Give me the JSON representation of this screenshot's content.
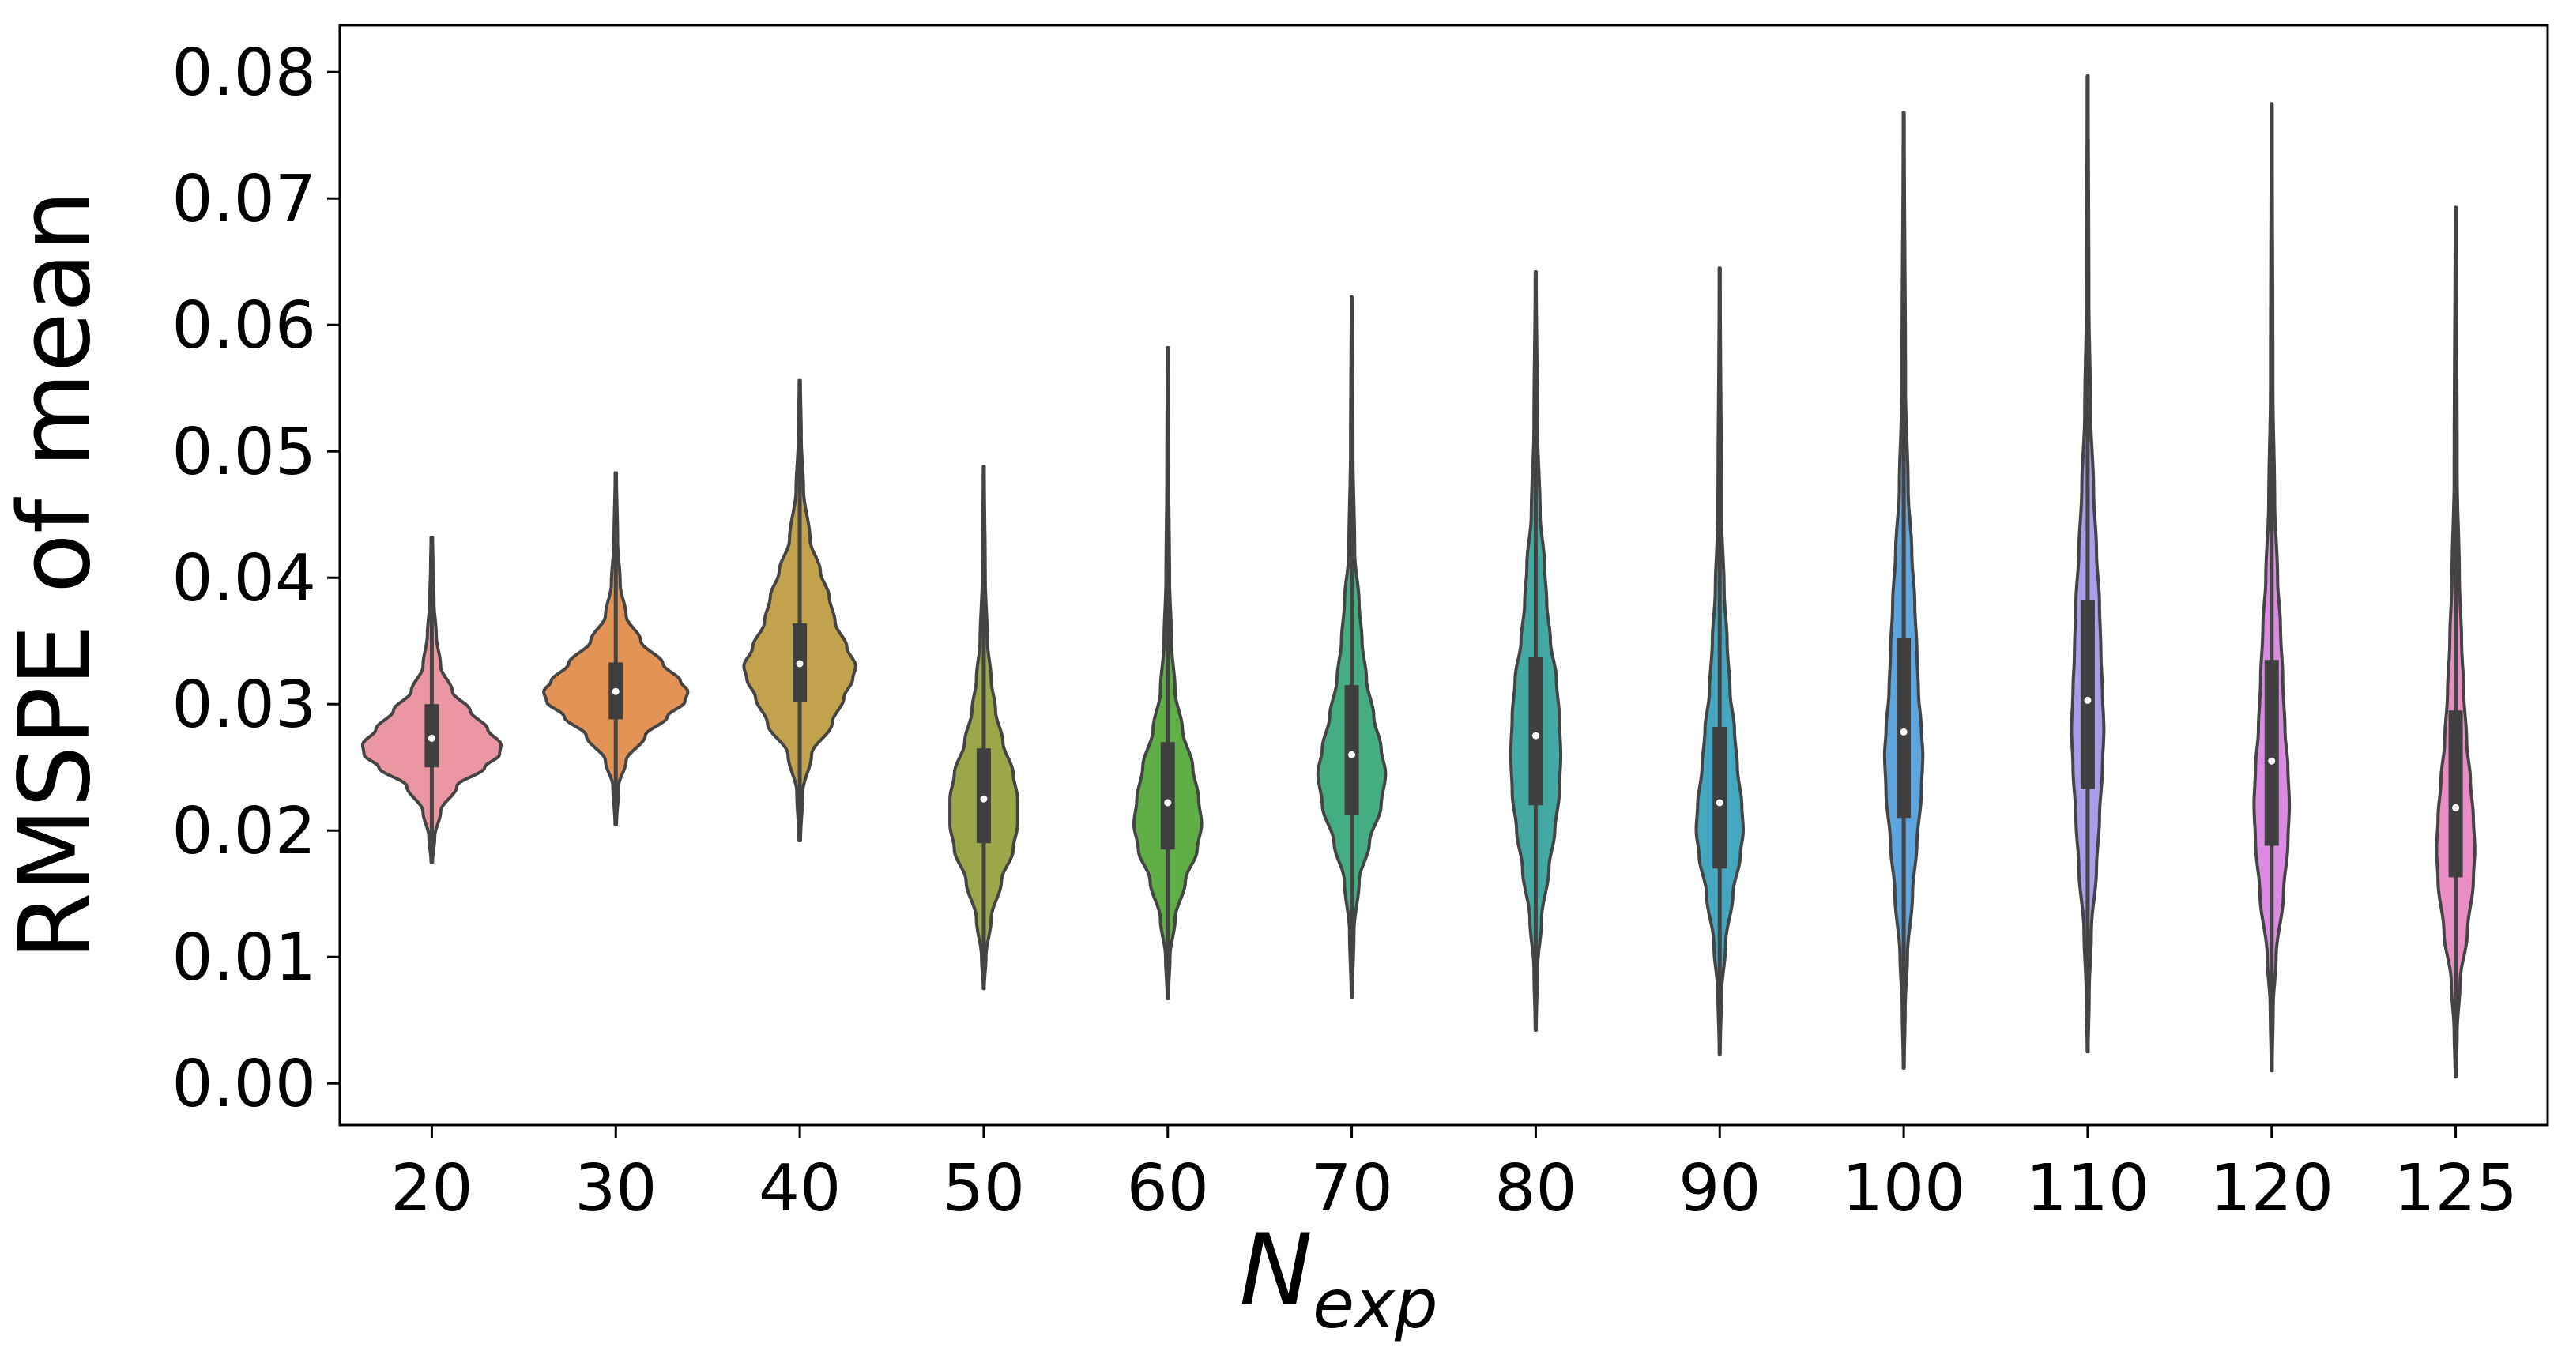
{
  "chart_data": {
    "type": "violin",
    "title": "",
    "xlabel": {
      "base": "N",
      "subscript": "exp"
    },
    "ylabel": "RMSPE of mean",
    "ylim": [
      -0.0033,
      0.0837
    ],
    "yticks": [
      "0.00",
      "0.01",
      "0.02",
      "0.03",
      "0.04",
      "0.05",
      "0.06",
      "0.07",
      "0.08"
    ],
    "grid": false,
    "legend": "none",
    "categories": [
      "20",
      "30",
      "40",
      "50",
      "60",
      "70",
      "80",
      "90",
      "100",
      "110",
      "120",
      "125"
    ],
    "series": [
      {
        "name": "20",
        "color": "#ea97a1",
        "min": 0.0175,
        "q1": 0.025,
        "median": 0.0273,
        "q3": 0.03,
        "max": 0.0432,
        "profile": [
          [
            0.0175,
            0.005
          ],
          [
            0.0195,
            0.02
          ],
          [
            0.0215,
            0.06
          ],
          [
            0.0235,
            0.17
          ],
          [
            0.025,
            0.36
          ],
          [
            0.026,
            0.46
          ],
          [
            0.0268,
            0.47
          ],
          [
            0.028,
            0.38
          ],
          [
            0.0295,
            0.26
          ],
          [
            0.031,
            0.14
          ],
          [
            0.033,
            0.06
          ],
          [
            0.0355,
            0.03
          ],
          [
            0.038,
            0.015
          ],
          [
            0.041,
            0.008
          ],
          [
            0.0432,
            0.005
          ]
        ]
      },
      {
        "name": "30",
        "color": "#e39356",
        "min": 0.0205,
        "q1": 0.0288,
        "median": 0.031,
        "q3": 0.0333,
        "max": 0.0483,
        "profile": [
          [
            0.0205,
            0.005
          ],
          [
            0.0235,
            0.02
          ],
          [
            0.0255,
            0.07
          ],
          [
            0.0275,
            0.2
          ],
          [
            0.029,
            0.35
          ],
          [
            0.0302,
            0.47
          ],
          [
            0.031,
            0.49
          ],
          [
            0.0318,
            0.44
          ],
          [
            0.0332,
            0.32
          ],
          [
            0.035,
            0.17
          ],
          [
            0.037,
            0.07
          ],
          [
            0.0395,
            0.03
          ],
          [
            0.043,
            0.012
          ],
          [
            0.0483,
            0.004
          ]
        ]
      },
      {
        "name": "40",
        "color": "#c2a24d",
        "min": 0.0192,
        "q1": 0.0302,
        "median": 0.0332,
        "q3": 0.0364,
        "max": 0.0556,
        "profile": [
          [
            0.0192,
            0.005
          ],
          [
            0.023,
            0.02
          ],
          [
            0.026,
            0.08
          ],
          [
            0.0285,
            0.22
          ],
          [
            0.0305,
            0.3
          ],
          [
            0.032,
            0.36
          ],
          [
            0.033,
            0.38
          ],
          [
            0.0345,
            0.32
          ],
          [
            0.0365,
            0.24
          ],
          [
            0.0385,
            0.2
          ],
          [
            0.0405,
            0.14
          ],
          [
            0.043,
            0.07
          ],
          [
            0.047,
            0.025
          ],
          [
            0.051,
            0.01
          ],
          [
            0.0556,
            0.004
          ]
        ]
      },
      {
        "name": "50",
        "color": "#9ba748",
        "min": 0.0075,
        "q1": 0.019,
        "median": 0.0225,
        "q3": 0.0265,
        "max": 0.0488,
        "profile": [
          [
            0.0075,
            0.003
          ],
          [
            0.01,
            0.015
          ],
          [
            0.013,
            0.05
          ],
          [
            0.016,
            0.12
          ],
          [
            0.0185,
            0.2
          ],
          [
            0.0205,
            0.23
          ],
          [
            0.0225,
            0.23
          ],
          [
            0.0245,
            0.2
          ],
          [
            0.027,
            0.13
          ],
          [
            0.0295,
            0.08
          ],
          [
            0.032,
            0.05
          ],
          [
            0.035,
            0.025
          ],
          [
            0.04,
            0.01
          ],
          [
            0.0488,
            0.003
          ]
        ]
      },
      {
        "name": "60",
        "color": "#5fae46",
        "min": 0.0067,
        "q1": 0.0185,
        "median": 0.0222,
        "q3": 0.027,
        "max": 0.0582,
        "profile": [
          [
            0.0067,
            0.003
          ],
          [
            0.01,
            0.015
          ],
          [
            0.013,
            0.05
          ],
          [
            0.016,
            0.12
          ],
          [
            0.0185,
            0.2
          ],
          [
            0.0205,
            0.23
          ],
          [
            0.0225,
            0.21
          ],
          [
            0.025,
            0.17
          ],
          [
            0.028,
            0.1
          ],
          [
            0.031,
            0.05
          ],
          [
            0.035,
            0.025
          ],
          [
            0.04,
            0.012
          ],
          [
            0.048,
            0.006
          ],
          [
            0.0582,
            0.003
          ]
        ]
      },
      {
        "name": "70",
        "color": "#44ad82",
        "min": 0.0068,
        "q1": 0.0212,
        "median": 0.026,
        "q3": 0.0315,
        "max": 0.0622,
        "profile": [
          [
            0.0068,
            0.003
          ],
          [
            0.012,
            0.015
          ],
          [
            0.016,
            0.05
          ],
          [
            0.019,
            0.12
          ],
          [
            0.022,
            0.2
          ],
          [
            0.0245,
            0.23
          ],
          [
            0.0265,
            0.2
          ],
          [
            0.029,
            0.15
          ],
          [
            0.032,
            0.1
          ],
          [
            0.035,
            0.07
          ],
          [
            0.038,
            0.05
          ],
          [
            0.042,
            0.02
          ],
          [
            0.05,
            0.008
          ],
          [
            0.0622,
            0.003
          ]
        ]
      },
      {
        "name": "80",
        "color": "#44a8a3",
        "min": 0.0042,
        "q1": 0.022,
        "median": 0.0275,
        "q3": 0.0337,
        "max": 0.0642,
        "profile": [
          [
            0.0042,
            0.003
          ],
          [
            0.009,
            0.012
          ],
          [
            0.013,
            0.04
          ],
          [
            0.017,
            0.09
          ],
          [
            0.02,
            0.13
          ],
          [
            0.023,
            0.16
          ],
          [
            0.026,
            0.17
          ],
          [
            0.029,
            0.16
          ],
          [
            0.032,
            0.14
          ],
          [
            0.035,
            0.1
          ],
          [
            0.038,
            0.075
          ],
          [
            0.041,
            0.06
          ],
          [
            0.045,
            0.03
          ],
          [
            0.052,
            0.012
          ],
          [
            0.0642,
            0.003
          ]
        ]
      },
      {
        "name": "90",
        "color": "#45a7bf",
        "min": 0.0023,
        "q1": 0.017,
        "median": 0.0222,
        "q3": 0.0282,
        "max": 0.0645,
        "profile": [
          [
            0.0023,
            0.003
          ],
          [
            0.007,
            0.012
          ],
          [
            0.011,
            0.04
          ],
          [
            0.015,
            0.09
          ],
          [
            0.018,
            0.14
          ],
          [
            0.02,
            0.16
          ],
          [
            0.022,
            0.15
          ],
          [
            0.025,
            0.12
          ],
          [
            0.028,
            0.1
          ],
          [
            0.031,
            0.07
          ],
          [
            0.035,
            0.05
          ],
          [
            0.039,
            0.03
          ],
          [
            0.045,
            0.012
          ],
          [
            0.0645,
            0.003
          ]
        ]
      },
      {
        "name": "100",
        "color": "#5fa5dd",
        "min": 0.0012,
        "q1": 0.021,
        "median": 0.0278,
        "q3": 0.0352,
        "max": 0.0768,
        "profile": [
          [
            0.0012,
            0.003
          ],
          [
            0.006,
            0.01
          ],
          [
            0.01,
            0.025
          ],
          [
            0.015,
            0.06
          ],
          [
            0.019,
            0.09
          ],
          [
            0.023,
            0.12
          ],
          [
            0.026,
            0.13
          ],
          [
            0.028,
            0.12
          ],
          [
            0.031,
            0.1
          ],
          [
            0.034,
            0.09
          ],
          [
            0.038,
            0.075
          ],
          [
            0.042,
            0.055
          ],
          [
            0.047,
            0.03
          ],
          [
            0.055,
            0.012
          ],
          [
            0.0768,
            0.003
          ]
        ]
      },
      {
        "name": "110",
        "color": "#a99de9",
        "min": 0.0025,
        "q1": 0.0233,
        "median": 0.0303,
        "q3": 0.0382,
        "max": 0.0797,
        "profile": [
          [
            0.0025,
            0.003
          ],
          [
            0.007,
            0.01
          ],
          [
            0.012,
            0.025
          ],
          [
            0.017,
            0.06
          ],
          [
            0.021,
            0.08
          ],
          [
            0.025,
            0.1
          ],
          [
            0.028,
            0.11
          ],
          [
            0.031,
            0.1
          ],
          [
            0.034,
            0.09
          ],
          [
            0.038,
            0.08
          ],
          [
            0.042,
            0.06
          ],
          [
            0.047,
            0.04
          ],
          [
            0.053,
            0.02
          ],
          [
            0.062,
            0.008
          ],
          [
            0.0797,
            0.003
          ]
        ]
      },
      {
        "name": "120",
        "color": "#dc8be2",
        "min": 0.001,
        "q1": 0.0188,
        "median": 0.0255,
        "q3": 0.0335,
        "max": 0.0775,
        "profile": [
          [
            0.001,
            0.003
          ],
          [
            0.006,
            0.01
          ],
          [
            0.01,
            0.03
          ],
          [
            0.015,
            0.08
          ],
          [
            0.019,
            0.11
          ],
          [
            0.022,
            0.12
          ],
          [
            0.025,
            0.11
          ],
          [
            0.028,
            0.09
          ],
          [
            0.032,
            0.075
          ],
          [
            0.036,
            0.06
          ],
          [
            0.04,
            0.04
          ],
          [
            0.046,
            0.02
          ],
          [
            0.055,
            0.008
          ],
          [
            0.0775,
            0.003
          ]
        ]
      },
      {
        "name": "125",
        "color": "#ea8dc5",
        "min": 0.0005,
        "q1": 0.0163,
        "median": 0.0218,
        "q3": 0.0295,
        "max": 0.0693,
        "profile": [
          [
            0.0005,
            0.003
          ],
          [
            0.004,
            0.01
          ],
          [
            0.008,
            0.03
          ],
          [
            0.012,
            0.08
          ],
          [
            0.016,
            0.12
          ],
          [
            0.0185,
            0.13
          ],
          [
            0.021,
            0.12
          ],
          [
            0.024,
            0.1
          ],
          [
            0.027,
            0.075
          ],
          [
            0.031,
            0.055
          ],
          [
            0.035,
            0.04
          ],
          [
            0.04,
            0.025
          ],
          [
            0.048,
            0.01
          ],
          [
            0.0693,
            0.003
          ]
        ]
      }
    ]
  }
}
